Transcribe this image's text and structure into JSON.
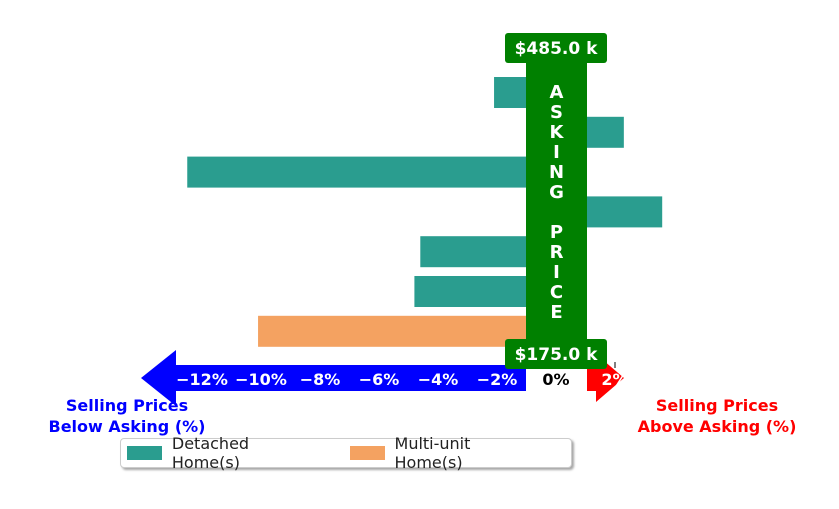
{
  "chart_data": {
    "type": "bar",
    "orientation": "horizontal",
    "xlim": [
      -14.5,
      3.5
    ],
    "x_ticks": [
      -12,
      -10,
      -8,
      -6,
      -4,
      -2,
      0,
      2
    ],
    "x_tick_labels": [
      "−12%",
      "−10%",
      "−8%",
      "−6%",
      "−4%",
      "−2%",
      "0%",
      "2%"
    ],
    "bars": [
      {
        "value": -2.1,
        "series": "detached"
      },
      {
        "value": 2.3,
        "series": "detached"
      },
      {
        "value": -12.5,
        "series": "detached"
      },
      {
        "value": 3.6,
        "series": "detached"
      },
      {
        "value": -4.6,
        "series": "detached"
      },
      {
        "value": -4.8,
        "series": "detached"
      },
      {
        "value": -10.1,
        "series": "multi"
      }
    ],
    "series": [
      {
        "key": "detached",
        "name": "Detached Home(s)",
        "color": "#2a9d8f"
      },
      {
        "key": "multi",
        "name": "Multi-unit Home(s)",
        "color": "#f4a261"
      }
    ],
    "center_label": "ASKING PRICE",
    "center_color": "#008000",
    "top_badge": "$485.0 k",
    "bottom_badge": "$175.0 k",
    "left_caption": [
      "Selling Prices",
      "Below Asking (%)"
    ],
    "left_caption_color": "#0000ff",
    "right_caption": [
      "Selling Prices",
      "Above Asking (%)"
    ],
    "right_caption_color": "#ff0000",
    "grid": false,
    "legend_position": "bottom-center"
  }
}
